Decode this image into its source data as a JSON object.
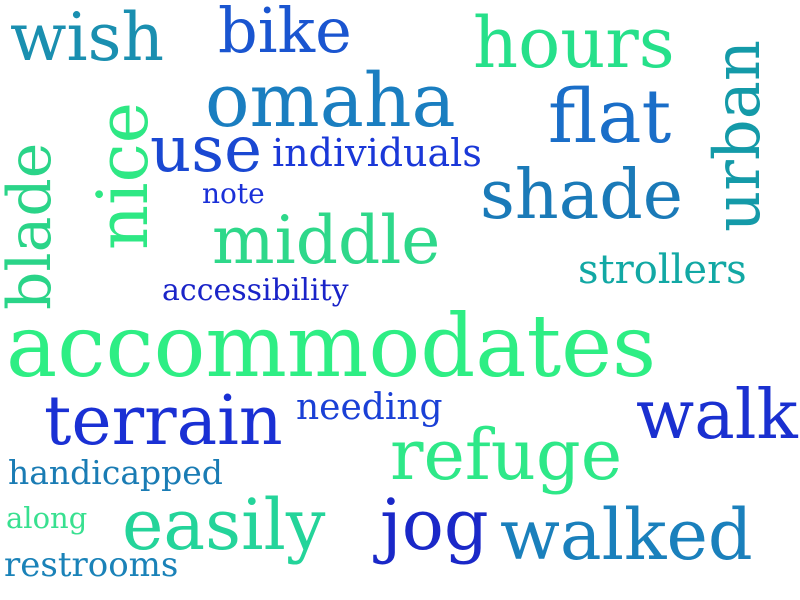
{
  "cloud": {
    "words": [
      {
        "text": "wish",
        "color": "#1a8fb0"
      },
      {
        "text": "bike",
        "color": "#1a55d0"
      },
      {
        "text": "hours",
        "color": "#26e08a"
      },
      {
        "text": "urban",
        "color": "#149aa8"
      },
      {
        "text": "omaha",
        "color": "#1a7ec0"
      },
      {
        "text": "flat",
        "color": "#1a6ec8"
      },
      {
        "text": "nice",
        "color": "#2ee884"
      },
      {
        "text": "use",
        "color": "#1a48d2"
      },
      {
        "text": "individuals",
        "color": "#1a38d8"
      },
      {
        "text": "blade",
        "color": "#2ad488"
      },
      {
        "text": "shade",
        "color": "#1a7ab8"
      },
      {
        "text": "note",
        "color": "#1a30d8"
      },
      {
        "text": "middle",
        "color": "#2ed88a"
      },
      {
        "text": "strollers",
        "color": "#12a8a4"
      },
      {
        "text": "accessibility",
        "color": "#1a24c8"
      },
      {
        "text": "accommodates",
        "color": "#2eee84"
      },
      {
        "text": "terrain",
        "color": "#1a30d4"
      },
      {
        "text": "needing",
        "color": "#1a40d6"
      },
      {
        "text": "walk",
        "color": "#1a30d0"
      },
      {
        "text": "handicapped",
        "color": "#1a7cb4"
      },
      {
        "text": "refuge",
        "color": "#2ee888"
      },
      {
        "text": "along",
        "color": "#38e090"
      },
      {
        "text": "easily",
        "color": "#24d49a"
      },
      {
        "text": "jog",
        "color": "#1a28c8"
      },
      {
        "text": "walked",
        "color": "#1a80bc"
      },
      {
        "text": "restrooms",
        "color": "#1a82b8"
      }
    ]
  }
}
